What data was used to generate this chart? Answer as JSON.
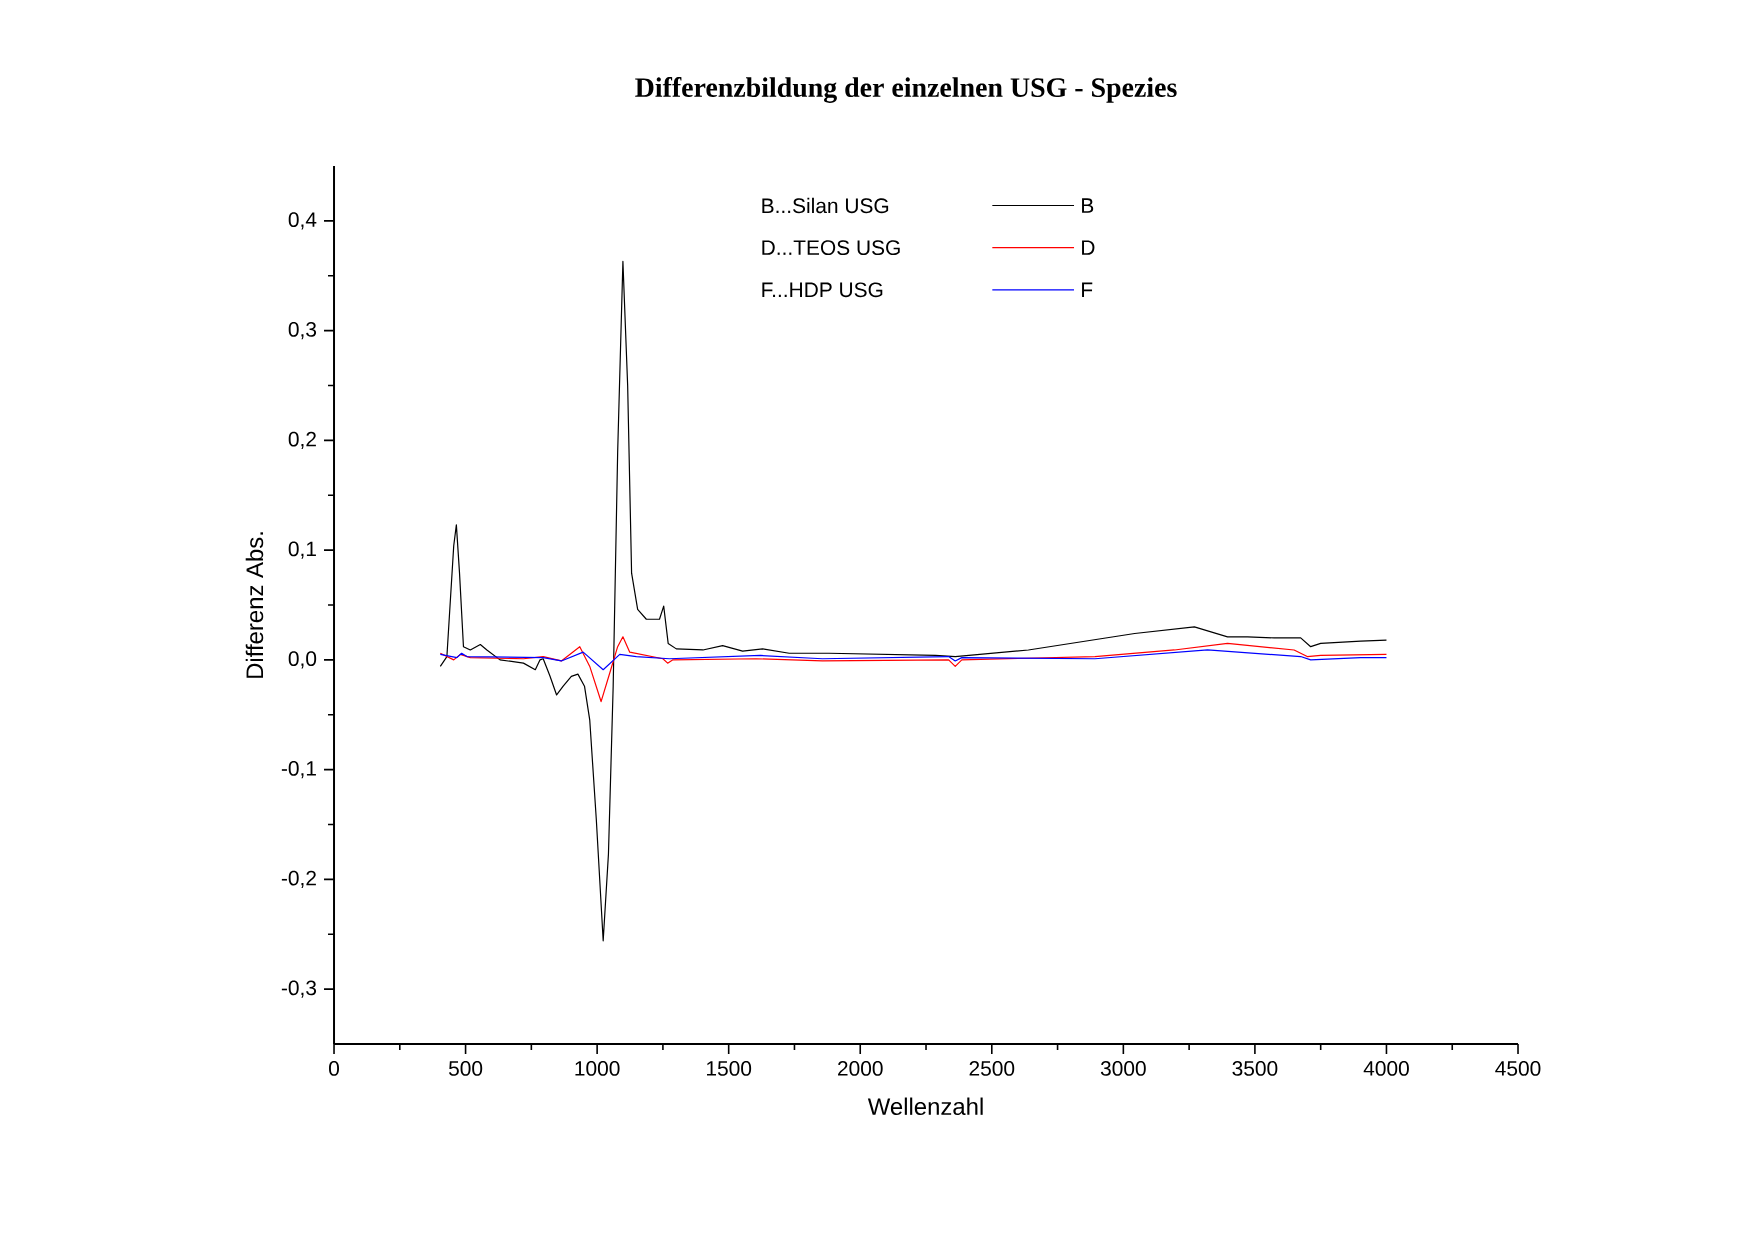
{
  "chart_data": {
    "type": "line",
    "title": "Differenzbildung der einzelnen USG - Spezies",
    "xlabel": "Wellenzahl",
    "ylabel": "Differenz Abs.",
    "annotations": [
      "B...Silan USG",
      "D...TEOS USG",
      "F...HDP USG"
    ],
    "legend": "top",
    "xlim": [
      0,
      4500
    ],
    "xticks": [
      0,
      500,
      1000,
      1500,
      2000,
      2500,
      3000,
      3500,
      4000,
      4500
    ],
    "ylim": [
      -0.35,
      0.45
    ],
    "yticks": [
      {
        "value": -0.3,
        "label": "-0,3"
      },
      {
        "value": -0.2,
        "label": "-0,2"
      },
      {
        "value": -0.1,
        "label": "-0,1"
      },
      {
        "value": 0,
        "label": "0,0"
      },
      {
        "value": 0.1,
        "label": "0,1"
      },
      {
        "value": 0.2,
        "label": "0,2"
      },
      {
        "value": 0.3,
        "label": "0,3"
      },
      {
        "value": 0.4,
        "label": "0,4"
      }
    ],
    "series": [
      {
        "name": "B",
        "color": "#000000",
        "x": [
          404,
          429,
          455,
          465,
          477,
          492,
          518,
          556,
          581,
          631,
          720,
          765,
          783,
          795,
          821,
          846,
          871,
          902,
          927,
          952,
          972,
          997,
          1023,
          1043,
          1061,
          1078,
          1098,
          1116,
          1131,
          1154,
          1187,
          1237,
          1253,
          1270,
          1301,
          1402,
          1477,
          1553,
          1629,
          1730,
          1881,
          2286,
          2361,
          2639,
          3043,
          3270,
          3396,
          3472,
          3573,
          3674,
          3712,
          3750,
          3902,
          4000
        ],
        "values": [
          -0.006,
          0.003,
          0.104,
          0.123,
          0.079,
          0.012,
          0.009,
          0.014,
          0.009,
          0.0,
          -0.003,
          -0.009,
          0.0,
          0.001,
          -0.015,
          -0.032,
          -0.024,
          -0.015,
          -0.013,
          -0.024,
          -0.055,
          -0.146,
          -0.256,
          -0.177,
          -0.024,
          0.189,
          0.363,
          0.25,
          0.079,
          0.046,
          0.037,
          0.037,
          0.049,
          0.015,
          0.01,
          0.009,
          0.013,
          0.008,
          0.01,
          0.006,
          0.006,
          0.004,
          0.003,
          0.009,
          0.024,
          0.03,
          0.021,
          0.021,
          0.02,
          0.02,
          0.012,
          0.015,
          0.017,
          0.018
        ]
      },
      {
        "name": "D",
        "color": "#ff0000",
        "x": [
          404,
          455,
          480,
          518,
          720,
          795,
          864,
          934,
          972,
          1015,
          1048,
          1078,
          1098,
          1124,
          1250,
          1268,
          1288,
          1604,
          1856,
          2336,
          2361,
          2386,
          2892,
          3194,
          3396,
          3649,
          3699,
          3750,
          4000
        ],
        "values": [
          0.006,
          0.0,
          0.005,
          0.002,
          0.001,
          0.003,
          -0.001,
          0.012,
          -0.006,
          -0.038,
          -0.012,
          0.012,
          0.021,
          0.007,
          0.001,
          -0.003,
          0.0,
          0.001,
          -0.001,
          0.0,
          -0.006,
          0.0,
          0.003,
          0.009,
          0.015,
          0.009,
          0.003,
          0.004,
          0.005
        ]
      },
      {
        "name": "F",
        "color": "#0000ff",
        "x": [
          404,
          467,
          485,
          505,
          795,
          864,
          947,
          1023,
          1086,
          1149,
          1275,
          1621,
          1856,
          2336,
          2361,
          2386,
          2892,
          3320,
          3674,
          3712,
          3902,
          4000
        ],
        "values": [
          0.005,
          0.002,
          0.006,
          0.003,
          0.002,
          -0.001,
          0.007,
          -0.009,
          0.005,
          0.003,
          0.001,
          0.004,
          0.001,
          0.003,
          -0.001,
          0.002,
          0.001,
          0.009,
          0.003,
          0.0,
          0.002,
          0.002
        ]
      }
    ]
  }
}
